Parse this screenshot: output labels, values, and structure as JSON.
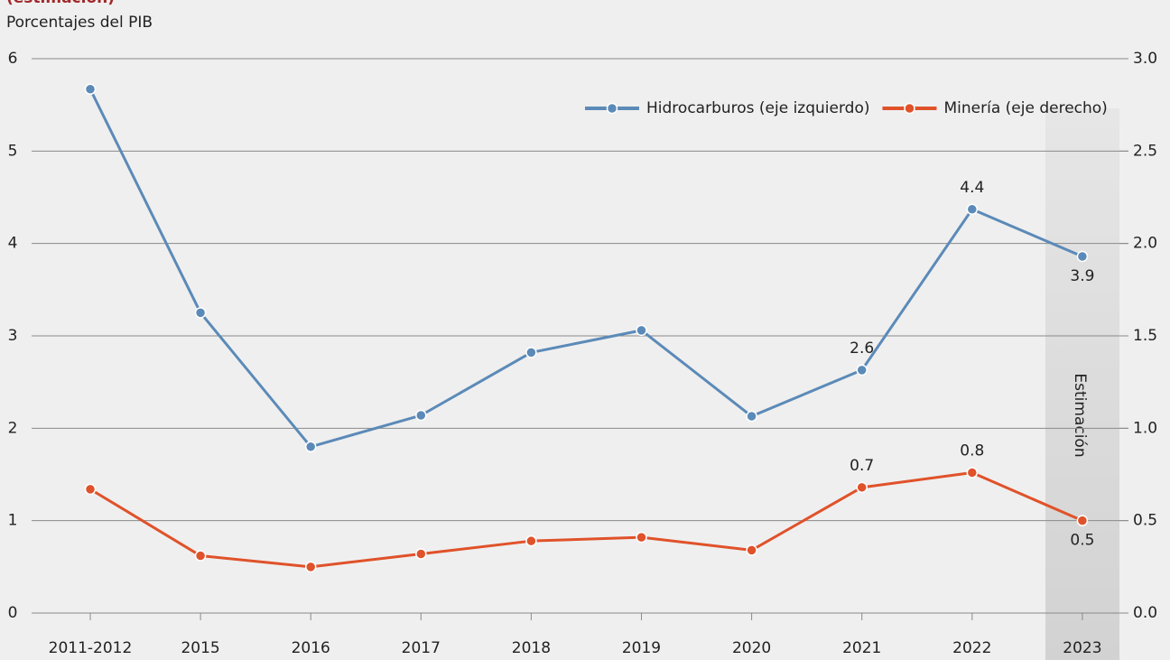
{
  "chart_data": {
    "type": "line",
    "title": "(estimación)",
    "y_label": "Porcentajes del PIB",
    "annotation": "Estimación",
    "categories": [
      "2011-2012",
      "2015",
      "2016",
      "2017",
      "2018",
      "2019",
      "2020",
      "2021",
      "2022",
      "2023"
    ],
    "series": [
      {
        "name": "Hidrocarburos (eje izquierdo)",
        "color": "#5b8ab8",
        "axis": "y",
        "values": [
          5.67,
          3.25,
          1.8,
          2.14,
          2.82,
          3.06,
          2.13,
          2.63,
          4.37,
          3.86
        ],
        "value_labels": [
          null,
          null,
          null,
          null,
          null,
          null,
          null,
          "2.6",
          "4.4",
          "3.9"
        ]
      },
      {
        "name": "Minería (eje derecho)",
        "color": "#e0522a",
        "axis": "y2",
        "values": [
          0.67,
          0.31,
          0.25,
          0.32,
          0.39,
          0.41,
          0.34,
          0.68,
          0.76,
          0.5
        ],
        "value_labels": [
          null,
          null,
          null,
          null,
          null,
          null,
          null,
          "0.7",
          "0.8",
          "0.5"
        ]
      }
    ],
    "ylim": [
      0,
      6
    ],
    "yticks": [
      0,
      1,
      2,
      3,
      4,
      5,
      6
    ],
    "y2lim": [
      0,
      3
    ],
    "y2ticks": [
      {
        "value": 0,
        "label": "0.0"
      },
      0.5,
      {
        "value": 1,
        "label": "1.0"
      },
      1.5,
      {
        "value": 2,
        "label": "2.0"
      },
      2.5,
      {
        "value": 3,
        "label": "3.0"
      }
    ],
    "grid": true,
    "legend": "top-right"
  }
}
